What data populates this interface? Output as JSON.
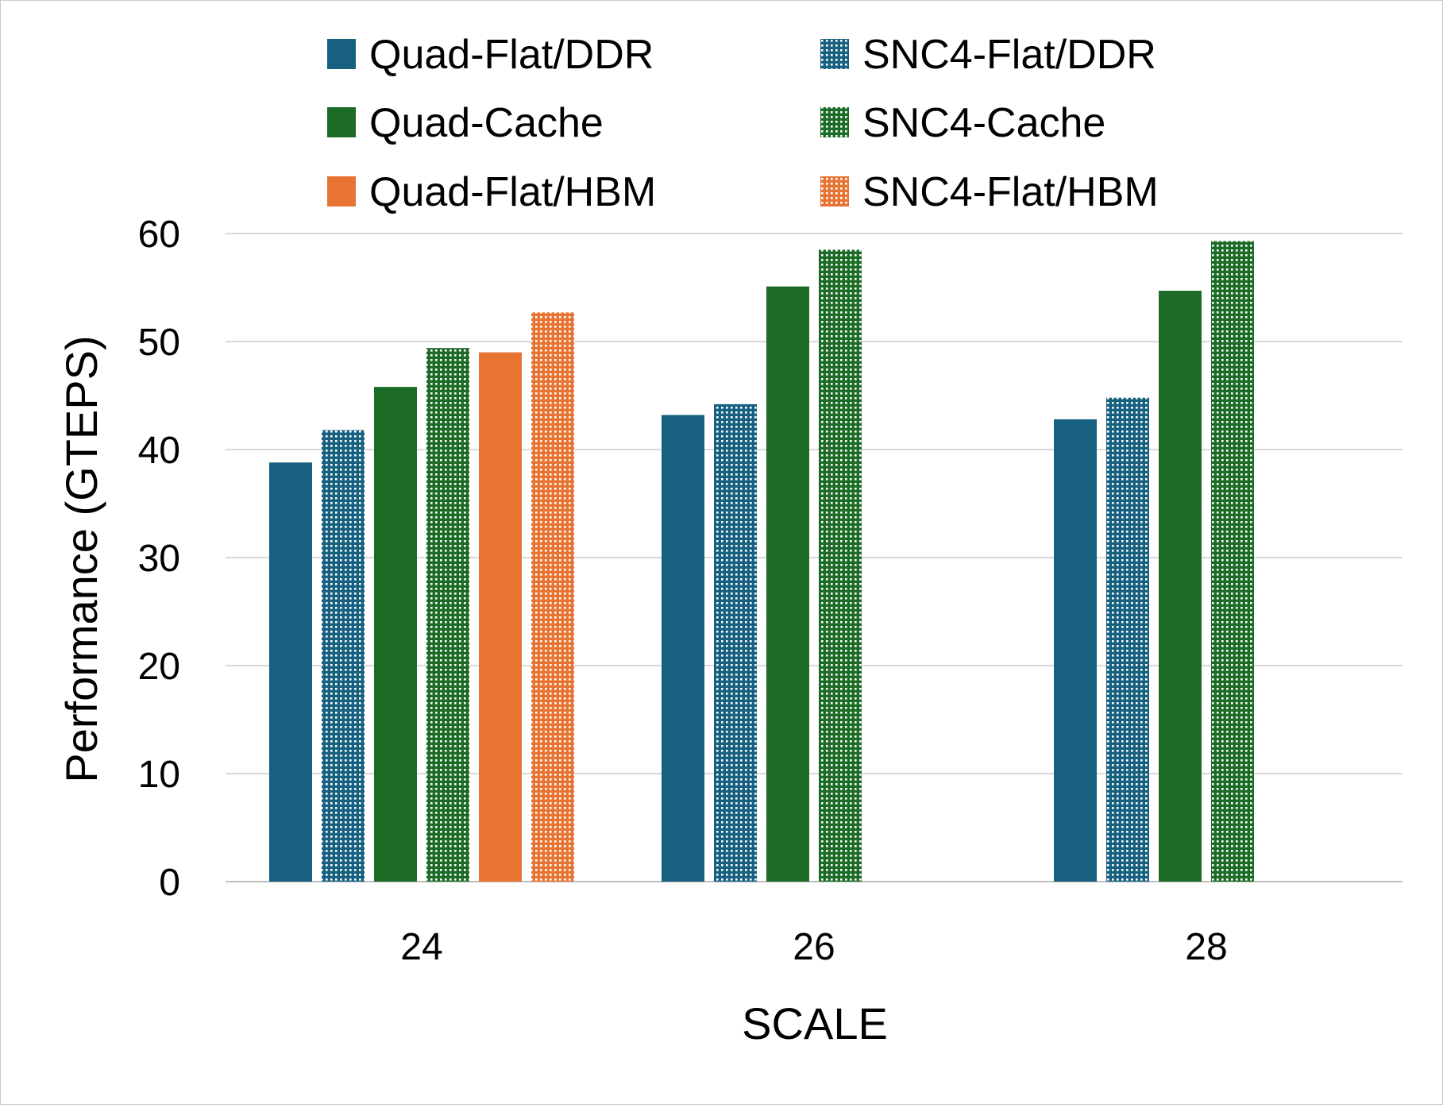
{
  "chart_data": {
    "type": "bar",
    "title": "",
    "xlabel": "SCALE",
    "ylabel": "Performance (GTEPS)",
    "ylim": [
      0,
      60
    ],
    "yticks": [
      "0",
      "10",
      "20",
      "30",
      "40",
      "50",
      "60"
    ],
    "grid": true,
    "legend_position": "top",
    "categories": [
      "24",
      "26",
      "28"
    ],
    "series": [
      {
        "name": "Quad-Flat/DDR",
        "color": "#17607f",
        "pattern": "solid",
        "values": [
          38.8,
          43.2,
          42.8
        ]
      },
      {
        "name": "SNC4-Flat/DDR",
        "color": "#17607f",
        "pattern": "dotted",
        "values": [
          41.8,
          44.2,
          44.8
        ]
      },
      {
        "name": "Quad-Cache",
        "color": "#1c6b26",
        "pattern": "solid",
        "values": [
          45.8,
          55.1,
          54.7
        ]
      },
      {
        "name": "SNC4-Cache",
        "color": "#1c6b26",
        "pattern": "dotted",
        "values": [
          49.4,
          58.5,
          59.3
        ]
      },
      {
        "name": "Quad-Flat/HBM",
        "color": "#e87434",
        "pattern": "solid",
        "values": [
          49.0,
          null,
          null
        ]
      },
      {
        "name": "SNC4-Flat/HBM",
        "color": "#e87434",
        "pattern": "dotted",
        "values": [
          52.7,
          null,
          null
        ]
      }
    ]
  }
}
